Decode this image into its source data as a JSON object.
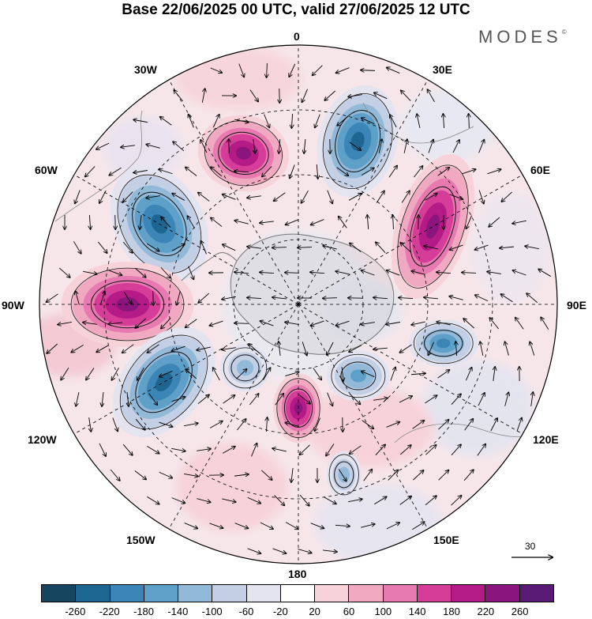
{
  "title": "Base 22/06/2025 00 UTC, valid 27/06/2025 12 UTC",
  "brand": {
    "name": "MODES",
    "mark": "©"
  },
  "longitude_labels": [
    {
      "id": "0",
      "text": "0"
    },
    {
      "id": "30E",
      "text": "30E"
    },
    {
      "id": "60E",
      "text": "60E"
    },
    {
      "id": "90E",
      "text": "90E"
    },
    {
      "id": "120E",
      "text": "120E"
    },
    {
      "id": "150E",
      "text": "150E"
    },
    {
      "id": "180",
      "text": "180"
    },
    {
      "id": "150W",
      "text": "150W"
    },
    {
      "id": "120W",
      "text": "120W"
    },
    {
      "id": "90W",
      "text": "90W"
    },
    {
      "id": "60W",
      "text": "60W"
    },
    {
      "id": "30W",
      "text": "30W"
    }
  ],
  "reference_vector": {
    "value": "30"
  },
  "colorbar": {
    "ticks": [
      "-260",
      "-220",
      "-180",
      "-140",
      "-100",
      "-60",
      "-20",
      "20",
      "60",
      "100",
      "140",
      "180",
      "220",
      "260"
    ],
    "colors": [
      "#16455f",
      "#1d6691",
      "#3b86b6",
      "#5fa0c8",
      "#93b9d8",
      "#c3cfe4",
      "#e4e4f0",
      "#ffffff",
      "#f7d2d8",
      "#f1a8c1",
      "#e77ab0",
      "#d53d98",
      "#b51b87",
      "#8a157d",
      "#581a75"
    ]
  },
  "map_data": {
    "projection": "south polar stereographic",
    "center": "south pole",
    "anomalies": [
      {
        "sign": "negative",
        "value": -240,
        "lon": 20
      },
      {
        "sign": "positive",
        "value": 240,
        "lon": -20
      },
      {
        "sign": "negative",
        "value": -250,
        "lon": -60
      },
      {
        "sign": "positive",
        "value": 250,
        "lon": -90
      },
      {
        "sign": "negative",
        "value": -250,
        "lon": -120
      },
      {
        "sign": "positive",
        "value": 230,
        "lon": 60
      },
      {
        "sign": "negative",
        "value": -200,
        "lon": 105
      },
      {
        "sign": "positive",
        "value": 230,
        "lon": 180
      },
      {
        "sign": "negative",
        "value": -150,
        "lon": 140
      },
      {
        "sign": "negative",
        "value": -130,
        "lon": -140
      },
      {
        "sign": "negative",
        "value": -120,
        "lon": 165
      }
    ]
  }
}
